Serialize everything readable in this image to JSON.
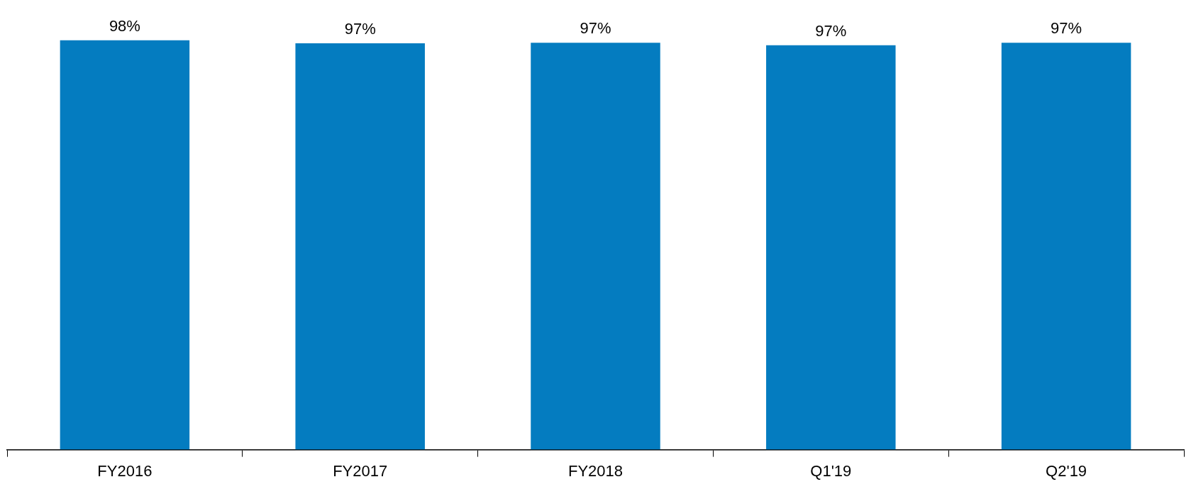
{
  "chart_data": {
    "type": "bar",
    "categories": [
      "FY2016",
      "FY2017",
      "FY2018",
      "Q1'19",
      "Q2'19"
    ],
    "values": [
      98,
      97.3,
      97.4,
      96.8,
      97.4
    ],
    "value_labels": [
      "98%",
      "97%",
      "97%",
      "97%",
      "97%"
    ],
    "color": "#047cc0",
    "grid": false,
    "legend": false,
    "tick_labels": "x"
  }
}
